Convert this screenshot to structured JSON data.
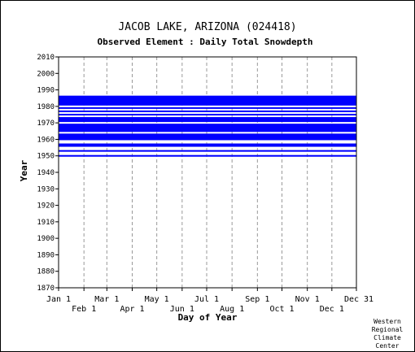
{
  "chart_data": {
    "type": "heatmap",
    "title": "JACOB LAKE, ARIZONA   (024418)",
    "subtitle": "Observed Element : Daily Total Snowdepth",
    "xlabel": "Day of Year",
    "ylabel": "Year",
    "ylim": [
      1870,
      2010
    ],
    "yticks": [
      "2010",
      "2000",
      "1990",
      "1980",
      "1970",
      "1960",
      "1950",
      "1940",
      "1930",
      "1920",
      "1910",
      "1900",
      "1890",
      "1880",
      "1870"
    ],
    "xlim": [
      1,
      365
    ],
    "xticks_top_row": [
      {
        "label": "Jan 1",
        "day": 1
      },
      {
        "label": "Mar 1",
        "day": 60
      },
      {
        "label": "May 1",
        "day": 121
      },
      {
        "label": "Jul 1",
        "day": 182
      },
      {
        "label": "Sep 1",
        "day": 244
      },
      {
        "label": "Nov 1",
        "day": 305
      },
      {
        "label": "Dec 31",
        "day": 365
      }
    ],
    "xticks_bottom_row": [
      {
        "label": "Feb 1",
        "day": 32
      },
      {
        "label": "Apr 1",
        "day": 91
      },
      {
        "label": "Jun 1",
        "day": 152
      },
      {
        "label": "Aug 1",
        "day": 213
      },
      {
        "label": "Oct 1",
        "day": 274
      },
      {
        "label": "Dec 1",
        "day": 335
      }
    ],
    "grid": "vertical dashed lines at month starts",
    "data_color": "#0000ff",
    "observed_periods": [
      {
        "year_start": 1980.5,
        "year_end": 1986.5,
        "day_start": 1,
        "day_end": 365
      },
      {
        "year_start": 1978.5,
        "year_end": 1979.5,
        "day_start": 1,
        "day_end": 365
      },
      {
        "year_start": 1976.5,
        "year_end": 1977.5,
        "day_start": 1,
        "day_end": 365
      },
      {
        "year_start": 1974.5,
        "year_end": 1975.5,
        "day_start": 1,
        "day_end": 365
      },
      {
        "year_start": 1970.5,
        "year_end": 1973.5,
        "day_start": 1,
        "day_end": 365
      },
      {
        "year_start": 1964.5,
        "year_end": 1969.5,
        "day_start": 1,
        "day_end": 365
      },
      {
        "year_start": 1959.5,
        "year_end": 1963.5,
        "day_start": 1,
        "day_end": 365
      },
      {
        "year_start": 1955.5,
        "year_end": 1957.5,
        "day_start": 1,
        "day_end": 365
      },
      {
        "year_start": 1952.5,
        "year_end": 1953.5,
        "day_start": 1,
        "day_end": 365
      },
      {
        "year_start": 1949.5,
        "year_end": 1950.5,
        "day_start": 1,
        "day_end": 365
      }
    ]
  },
  "credit": [
    "Western",
    "Regional",
    "Climate",
    "Center"
  ]
}
